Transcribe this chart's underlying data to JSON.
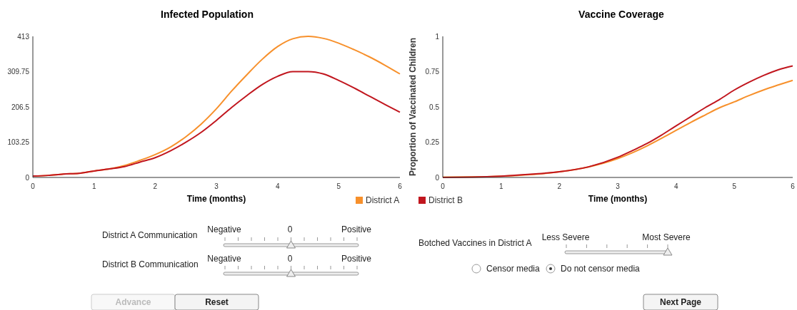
{
  "chart_data": [
    {
      "type": "line",
      "title": "Infected Population",
      "xlabel": "Time (months)",
      "xlim": [
        0,
        6
      ],
      "xticks": [
        0,
        1,
        2,
        3,
        4,
        5,
        6
      ],
      "ylim": [
        0,
        413
      ],
      "yticks": [
        0,
        103.25,
        206.5,
        309.75,
        413
      ],
      "legend": "bottom right",
      "grid": false,
      "marker": "none",
      "x": [
        0,
        0.25,
        0.5,
        0.75,
        1,
        1.25,
        1.5,
        1.75,
        2,
        2.25,
        2.5,
        2.75,
        3,
        3.25,
        3.5,
        3.75,
        4,
        4.25,
        4.5,
        4.75,
        5,
        5.25,
        5.5,
        5.75,
        6
      ],
      "series": [
        {
          "name": "District A",
          "color": "#f7902b",
          "values": [
            4,
            6,
            10,
            12,
            19,
            25,
            35,
            50,
            67,
            89,
            119,
            156,
            201,
            253,
            301,
            346,
            383,
            406,
            413,
            407,
            393,
            374,
            353,
            329,
            303
          ]
        },
        {
          "name": "District B",
          "color": "#c1161e",
          "values": [
            4,
            6,
            10,
            12,
            19,
            25,
            32,
            45,
            58,
            78,
            103,
            132,
            167,
            205,
            240,
            272,
            296,
            310,
            310,
            303,
            284,
            262,
            238,
            214,
            191
          ]
        }
      ]
    },
    {
      "type": "line",
      "title": "Vaccine Coverage",
      "xlabel": "Time (months)",
      "ylabel": "Proportion of  Vaccinated Children",
      "xlim": [
        0,
        6
      ],
      "xticks": [
        0,
        1,
        2,
        3,
        4,
        5,
        6
      ],
      "ylim": [
        0,
        1
      ],
      "yticks": [
        0,
        0.25,
        0.5,
        0.75,
        1
      ],
      "grid": false,
      "marker": "none",
      "x": [
        0,
        0.5,
        1,
        1.5,
        2,
        2.5,
        3,
        3.25,
        3.5,
        3.75,
        4,
        4.25,
        4.5,
        4.75,
        5,
        5.25,
        5.5,
        5.75,
        6
      ],
      "series": [
        {
          "color": "#f7902b",
          "values": [
            0.003,
            0.004,
            0.009,
            0.02,
            0.04,
            0.075,
            0.134,
            0.175,
            0.223,
            0.277,
            0.334,
            0.39,
            0.443,
            0.495,
            0.536,
            0.58,
            0.62,
            0.655,
            0.688
          ]
        },
        {
          "color": "#c1161e",
          "values": [
            0,
            0.002,
            0.009,
            0.023,
            0.04,
            0.075,
            0.143,
            0.19,
            0.24,
            0.3,
            0.366,
            0.43,
            0.495,
            0.554,
            0.62,
            0.675,
            0.723,
            0.763,
            0.79
          ]
        }
      ]
    },
    {
      "type": "other",
      "annotations": [
        "District A Communication",
        "Negative",
        "0",
        "Positive",
        "District B Communication",
        "Negative",
        "0",
        "Positive",
        "Botched Vaccines in District A",
        "Less Severe",
        "Most Severe",
        "Censor media",
        "Do not censor media",
        "Advance",
        "Reset",
        "Next Page"
      ]
    }
  ]
}
